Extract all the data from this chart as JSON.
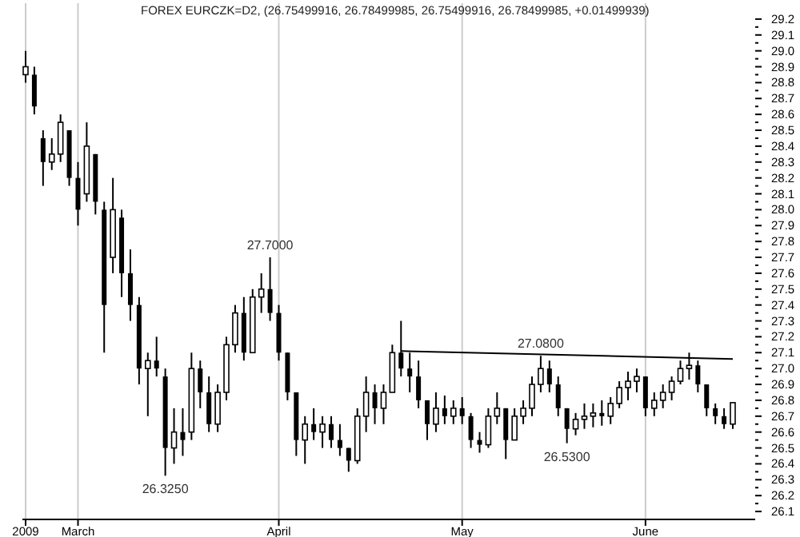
{
  "chart_data": {
    "type": "candlestick",
    "title": "FOREX EURCZK=D2, (26.75499916, 26.78499985, 26.75499916, 26.78499985, +0.01499939)",
    "categories": [
      "2009",
      null,
      null,
      null,
      null,
      null,
      "March",
      null,
      null,
      null,
      null,
      null,
      null,
      null,
      null,
      null,
      null,
      null,
      null,
      null,
      null,
      null,
      null,
      null,
      null,
      null,
      null,
      null,
      null,
      "April",
      null,
      null,
      null,
      null,
      null,
      null,
      null,
      null,
      null,
      null,
      null,
      null,
      null,
      null,
      null,
      null,
      null,
      null,
      null,
      null,
      "May",
      null,
      null,
      null,
      null,
      null,
      null,
      null,
      null,
      null,
      null,
      null,
      null,
      null,
      null,
      null,
      null,
      null,
      null,
      null,
      null,
      "June",
      null,
      null,
      null,
      null,
      null,
      null,
      null,
      null,
      null,
      null
    ],
    "color": "#000000",
    "ohlc": [
      [
        28.85,
        29.0,
        28.8,
        28.9
      ],
      [
        28.85,
        28.9,
        28.6,
        28.65
      ],
      [
        28.45,
        28.5,
        28.15,
        28.3
      ],
      [
        28.3,
        28.45,
        28.25,
        28.35
      ],
      [
        28.35,
        28.6,
        28.3,
        28.55
      ],
      [
        28.5,
        28.5,
        28.15,
        28.2
      ],
      [
        28.2,
        28.3,
        27.9,
        28.0
      ],
      [
        28.1,
        28.55,
        28.05,
        28.4
      ],
      [
        28.35,
        28.35,
        27.97,
        28.05
      ],
      [
        28.0,
        28.05,
        27.1,
        27.4
      ],
      [
        27.7,
        28.2,
        27.6,
        28.0
      ],
      [
        27.95,
        28.0,
        27.45,
        27.6
      ],
      [
        27.6,
        27.75,
        27.3,
        27.4
      ],
      [
        27.4,
        27.45,
        26.9,
        27.0
      ],
      [
        27.0,
        27.1,
        26.7,
        27.05
      ],
      [
        27.05,
        27.2,
        26.95,
        27.0
      ],
      [
        26.95,
        27.0,
        26.325,
        26.5
      ],
      [
        26.5,
        26.75,
        26.4,
        26.6
      ],
      [
        26.6,
        26.75,
        26.45,
        26.55
      ],
      [
        26.6,
        27.1,
        26.55,
        27.0
      ],
      [
        27.0,
        27.05,
        26.75,
        26.85
      ],
      [
        26.85,
        26.95,
        26.6,
        26.65
      ],
      [
        26.65,
        26.9,
        26.6,
        26.85
      ],
      [
        26.85,
        27.2,
        26.8,
        27.15
      ],
      [
        27.15,
        27.4,
        27.1,
        27.35
      ],
      [
        27.35,
        27.45,
        27.05,
        27.1
      ],
      [
        27.1,
        27.5,
        27.1,
        27.45
      ],
      [
        27.45,
        27.6,
        27.35,
        27.5
      ],
      [
        27.5,
        27.7,
        27.3,
        27.35
      ],
      [
        27.35,
        27.4,
        27.05,
        27.1
      ],
      [
        27.1,
        27.1,
        26.8,
        26.85
      ],
      [
        26.85,
        26.85,
        26.45,
        26.55
      ],
      [
        26.55,
        26.7,
        26.4,
        26.65
      ],
      [
        26.65,
        26.75,
        26.55,
        26.6
      ],
      [
        26.6,
        26.7,
        26.5,
        26.65
      ],
      [
        26.65,
        26.7,
        26.5,
        26.55
      ],
      [
        26.55,
        26.65,
        26.45,
        26.5
      ],
      [
        26.5,
        26.5,
        26.35,
        26.42
      ],
      [
        26.42,
        26.75,
        26.4,
        26.7
      ],
      [
        26.7,
        26.95,
        26.6,
        26.85
      ],
      [
        26.85,
        26.9,
        26.65,
        26.75
      ],
      [
        26.75,
        26.9,
        26.65,
        26.85
      ],
      [
        26.85,
        27.15,
        26.85,
        27.1
      ],
      [
        27.1,
        27.3,
        26.95,
        27.0
      ],
      [
        27.0,
        27.1,
        26.85,
        26.95
      ],
      [
        26.95,
        27.05,
        26.75,
        26.8
      ],
      [
        26.8,
        26.8,
        26.55,
        26.65
      ],
      [
        26.65,
        26.85,
        26.6,
        26.75
      ],
      [
        26.75,
        26.83,
        26.65,
        26.7
      ],
      [
        26.7,
        26.8,
        26.65,
        26.75
      ],
      [
        26.75,
        26.82,
        26.65,
        26.7
      ],
      [
        26.7,
        26.72,
        26.5,
        26.55
      ],
      [
        26.55,
        26.6,
        26.47,
        26.52
      ],
      [
        26.52,
        26.75,
        26.5,
        26.7
      ],
      [
        26.7,
        26.85,
        26.65,
        26.75
      ],
      [
        26.75,
        26.75,
        26.43,
        26.55
      ],
      [
        26.55,
        26.75,
        26.55,
        26.7
      ],
      [
        26.7,
        26.8,
        26.65,
        26.75
      ],
      [
        26.75,
        26.95,
        26.7,
        26.9
      ],
      [
        26.9,
        27.08,
        26.85,
        27.0
      ],
      [
        27.0,
        27.05,
        26.85,
        26.9
      ],
      [
        26.9,
        26.95,
        26.7,
        26.75
      ],
      [
        26.75,
        26.75,
        26.53,
        26.62
      ],
      [
        26.62,
        26.72,
        26.58,
        26.68
      ],
      [
        26.68,
        26.78,
        26.62,
        26.7
      ],
      [
        26.7,
        26.78,
        26.63,
        26.72
      ],
      [
        26.72,
        26.8,
        26.64,
        26.7
      ],
      [
        26.7,
        26.82,
        26.65,
        26.78
      ],
      [
        26.78,
        26.92,
        26.75,
        26.88
      ],
      [
        26.88,
        26.98,
        26.8,
        26.92
      ],
      [
        26.92,
        27.0,
        26.85,
        26.95
      ],
      [
        26.95,
        26.95,
        26.7,
        26.75
      ],
      [
        26.75,
        26.85,
        26.7,
        26.8
      ],
      [
        26.8,
        26.9,
        26.75,
        26.85
      ],
      [
        26.85,
        26.95,
        26.8,
        26.92
      ],
      [
        26.92,
        27.05,
        26.9,
        27.0
      ],
      [
        27.0,
        27.1,
        26.93,
        27.02
      ],
      [
        27.02,
        27.05,
        26.85,
        26.9
      ],
      [
        26.9,
        26.9,
        26.7,
        26.75
      ],
      [
        26.75,
        26.78,
        26.65,
        26.7
      ],
      [
        26.7,
        26.75,
        26.62,
        26.65
      ],
      [
        26.65,
        26.785,
        26.62,
        26.785
      ]
    ],
    "series": [
      {
        "type": "line",
        "color": "#000000",
        "values": [
          null,
          null,
          null,
          null,
          null,
          null,
          null,
          null,
          null,
          null,
          null,
          null,
          null,
          null,
          null,
          null,
          null,
          null,
          null,
          null,
          null,
          null,
          null,
          null,
          null,
          null,
          null,
          null,
          null,
          null,
          null,
          null,
          null,
          null,
          null,
          null,
          null,
          null,
          null,
          null,
          null,
          null,
          null,
          27.11,
          null,
          null,
          null,
          null,
          null,
          null,
          null,
          null,
          null,
          null,
          null,
          null,
          null,
          null,
          null,
          null,
          null,
          null,
          null,
          null,
          null,
          null,
          null,
          null,
          null,
          null,
          null,
          null,
          null,
          null,
          null,
          null,
          null,
          null,
          null,
          null,
          null,
          27.06
        ]
      }
    ],
    "ylim": [
      26.05,
      29.3
    ],
    "yticks": [
      26.1,
      {
        "value": 26.15,
        "label": null
      },
      26.2,
      {
        "value": 26.25,
        "label": null
      },
      26.3,
      {
        "value": 26.35,
        "label": null
      },
      26.4,
      {
        "value": 26.45,
        "label": null
      },
      26.5,
      {
        "value": 26.55,
        "label": null
      },
      26.6,
      {
        "value": 26.65,
        "label": null
      },
      26.7,
      {
        "value": 26.75,
        "label": null
      },
      26.8,
      {
        "value": 26.85,
        "label": null
      },
      26.9,
      {
        "value": 26.95,
        "label": null
      },
      {
        "value": 27.0,
        "label": "27.0"
      },
      {
        "value": 27.05,
        "label": null
      },
      27.1,
      {
        "value": 27.15,
        "label": null
      },
      27.2,
      {
        "value": 27.25,
        "label": null
      },
      27.3,
      {
        "value": 27.35,
        "label": null
      },
      27.4,
      {
        "value": 27.45,
        "label": null
      },
      27.5,
      {
        "value": 27.55,
        "label": null
      },
      27.6,
      {
        "value": 27.65,
        "label": null
      },
      27.7,
      {
        "value": 27.75,
        "label": null
      },
      27.8,
      {
        "value": 27.85,
        "label": null
      },
      27.9,
      {
        "value": 27.95,
        "label": null
      },
      {
        "value": 28.0,
        "label": "28.0"
      },
      {
        "value": 28.05,
        "label": null
      },
      28.1,
      {
        "value": 28.15,
        "label": null
      },
      28.2,
      {
        "value": 28.25,
        "label": null
      },
      28.3,
      {
        "value": 28.35,
        "label": null
      },
      28.4,
      {
        "value": 28.45,
        "label": null
      },
      28.5,
      {
        "value": 28.55,
        "label": null
      },
      28.6,
      {
        "value": 28.65,
        "label": null
      },
      28.7,
      {
        "value": 28.75,
        "label": null
      },
      28.8,
      {
        "value": 28.85,
        "label": null
      },
      28.9,
      {
        "value": 28.95,
        "label": null
      },
      {
        "value": 29.0,
        "label": "29.0"
      },
      {
        "value": 29.05,
        "label": null
      },
      29.1,
      {
        "value": 29.15,
        "label": null
      },
      29.2
    ],
    "grid": "x",
    "annotations": [
      {
        "text": "27.7000",
        "y": 27.7
      },
      {
        "text": "26.3250",
        "y": 26.325
      },
      {
        "text": "27.0800",
        "y": 27.08
      },
      {
        "text": "26.5300",
        "y": 26.53
      }
    ]
  }
}
